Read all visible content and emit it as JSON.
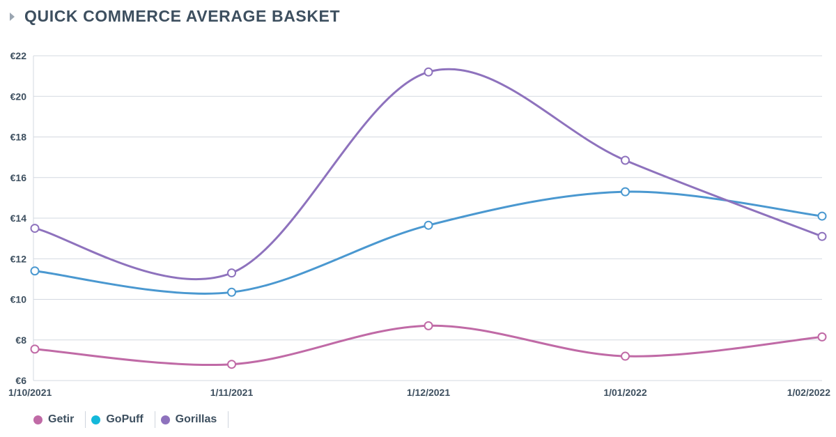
{
  "chart_data": {
    "type": "line",
    "title": "QUICK COMMERCE AVERAGE BASKET",
    "x": [
      "1/10/2021",
      "1/11/2021",
      "1/12/2021",
      "1/01/2022",
      "1/02/2022"
    ],
    "ylim": [
      6,
      22
    ],
    "yticks": [
      "€6",
      "€8",
      "€10",
      "€12",
      "€14",
      "€16",
      "€18",
      "€20",
      "€22"
    ],
    "grid": true,
    "legend_position": "bottom-left",
    "series": [
      {
        "name": "Getir",
        "color": "#c06aa6",
        "legend_color": "#c06aa6",
        "values": [
          7.55,
          6.8,
          8.7,
          7.2,
          8.15
        ]
      },
      {
        "name": "GoPuff",
        "color": "#4a98d0",
        "legend_color": "#14b8da",
        "values": [
          11.4,
          10.35,
          13.65,
          15.3,
          14.1
        ]
      },
      {
        "name": "Gorillas",
        "color": "#8e72bd",
        "legend_color": "#8e72bd",
        "values": [
          13.5,
          11.3,
          21.2,
          16.85,
          13.1
        ]
      }
    ]
  }
}
